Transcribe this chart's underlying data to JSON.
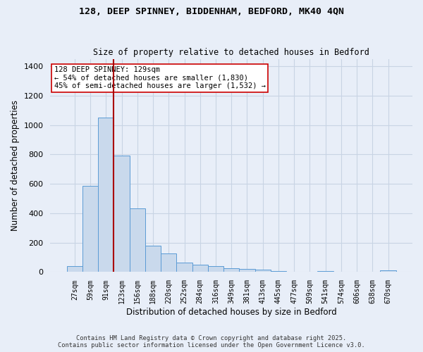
{
  "title_line1": "128, DEEP SPINNEY, BIDDENHAM, BEDFORD, MK40 4QN",
  "title_line2": "Size of property relative to detached houses in Bedford",
  "xlabel": "Distribution of detached houses by size in Bedford",
  "ylabel": "Number of detached properties",
  "categories": [
    "27sqm",
    "59sqm",
    "91sqm",
    "123sqm",
    "156sqm",
    "188sqm",
    "220sqm",
    "252sqm",
    "284sqm",
    "316sqm",
    "349sqm",
    "381sqm",
    "413sqm",
    "445sqm",
    "477sqm",
    "509sqm",
    "541sqm",
    "574sqm",
    "606sqm",
    "638sqm",
    "670sqm"
  ],
  "values": [
    42,
    585,
    1050,
    790,
    435,
    180,
    125,
    65,
    50,
    42,
    25,
    22,
    17,
    8,
    0,
    0,
    7,
    0,
    0,
    0,
    12
  ],
  "bar_color": "#c9d9ec",
  "bar_edge_color": "#5b9bd5",
  "vline_x": 2.5,
  "vline_color": "#aa0000",
  "annotation_text": "128 DEEP SPINNEY: 129sqm\n← 54% of detached houses are smaller (1,830)\n45% of semi-detached houses are larger (1,532) →",
  "annotation_box_color": "#ffffff",
  "annotation_box_edge": "#cc0000",
  "ylim": [
    0,
    1450
  ],
  "yticks": [
    0,
    200,
    400,
    600,
    800,
    1000,
    1200,
    1400
  ],
  "grid_color": "#c8d4e4",
  "background_color": "#e8eef8",
  "footer_line1": "Contains HM Land Registry data © Crown copyright and database right 2025.",
  "footer_line2": "Contains public sector information licensed under the Open Government Licence v3.0."
}
